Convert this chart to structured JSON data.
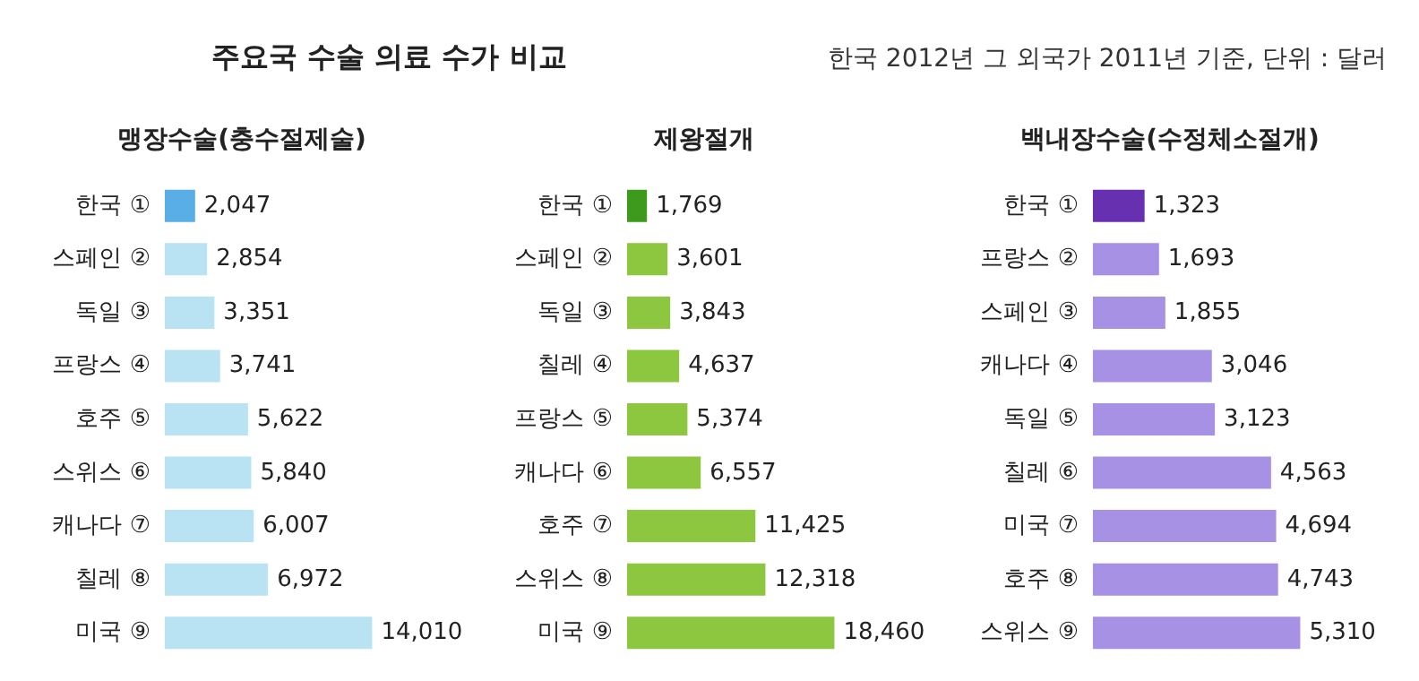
{
  "chart_data": [
    {
      "type": "other",
      "title": "주요국 수술 의료 수가 비교",
      "subtitle": "한국 2012년 그 외국가 2011년 기준, 단위 : 달러"
    },
    {
      "type": "bar",
      "orientation": "horizontal",
      "title": "맹장수술(충수절제술)",
      "categories": [
        "한국 ①",
        "스페인 ②",
        "독일 ③",
        "프랑스 ④",
        "호주 ⑤",
        "스위스 ⑥",
        "캐나다 ⑦",
        "칠레 ⑧",
        "미국 ⑨"
      ],
      "series": [
        {
          "colors": [
            "#5aaee6",
            "#b9e3f3",
            "#b9e3f3",
            "#b9e3f3",
            "#b9e3f3",
            "#b9e3f3",
            "#b9e3f3",
            "#b9e3f3",
            "#b9e3f3"
          ],
          "values": [
            2047,
            2854,
            3351,
            3741,
            5622,
            5840,
            6007,
            6972,
            14010
          ],
          "value_labels": [
            "2,047",
            "2,854",
            "3,351",
            "3,741",
            "5,622",
            "5,840",
            "6,007",
            "6,972",
            "14,010"
          ]
        }
      ]
    },
    {
      "type": "bar",
      "orientation": "horizontal",
      "title": "제왕절개",
      "categories": [
        "한국 ①",
        "스페인 ②",
        "독일 ③",
        "칠레 ④",
        "프랑스 ⑤",
        "캐나다 ⑥",
        "호주 ⑦",
        "스위스 ⑧",
        "미국 ⑨"
      ],
      "series": [
        {
          "colors": [
            "#3d9a1c",
            "#8dc63f",
            "#8dc63f",
            "#8dc63f",
            "#8dc63f",
            "#8dc63f",
            "#8dc63f",
            "#8dc63f",
            "#8dc63f"
          ],
          "values": [
            1769,
            3601,
            3843,
            4637,
            5374,
            6557,
            11425,
            12318,
            18460
          ],
          "value_labels": [
            "1,769",
            "3,601",
            "3,843",
            "4,637",
            "5,374",
            "6,557",
            "11,425",
            "12,318",
            "18,460"
          ]
        }
      ]
    },
    {
      "type": "bar",
      "orientation": "horizontal",
      "title": "백내장수술(수정체소절개)",
      "categories": [
        "한국 ①",
        "프랑스 ②",
        "스페인 ③",
        "캐나다 ④",
        "독일 ⑤",
        "칠레 ⑥",
        "미국 ⑦",
        "호주 ⑧",
        "스위스 ⑨"
      ],
      "series": [
        {
          "colors": [
            "#6630b0",
            "#a791e4",
            "#a791e4",
            "#a791e4",
            "#a791e4",
            "#a791e4",
            "#a791e4",
            "#a791e4",
            "#a791e4"
          ],
          "values": [
            1323,
            1693,
            1855,
            3046,
            3123,
            4563,
            4694,
            4743,
            5310
          ],
          "value_labels": [
            "1,323",
            "1,693",
            "1,855",
            "3,046",
            "3,123",
            "4,563",
            "4,694",
            "4,743",
            "5,310"
          ]
        }
      ]
    }
  ]
}
